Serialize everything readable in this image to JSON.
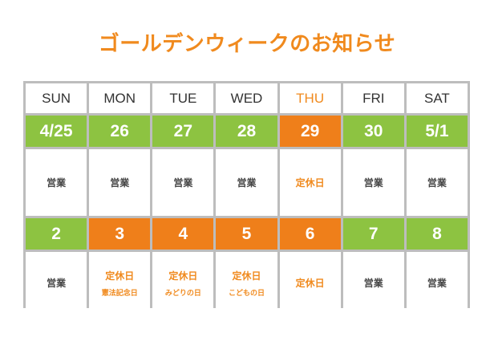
{
  "title": "ゴールデンウィークのお知らせ",
  "weekdays": [
    "SUN",
    "MON",
    "TUE",
    "WED",
    "THU",
    "FRI",
    "SAT"
  ],
  "week1": {
    "dates": [
      "4/25",
      "26",
      "27",
      "28",
      "29",
      "30",
      "5/1"
    ],
    "statuses": [
      "営業",
      "営業",
      "営業",
      "営業",
      "定休日",
      "営業",
      "営業"
    ]
  },
  "week2": {
    "dates": [
      "2",
      "3",
      "4",
      "5",
      "6",
      "7",
      "8"
    ],
    "statuses": [
      "営業",
      "定休日",
      "定休日",
      "定休日",
      "定休日",
      "営業",
      "営業"
    ],
    "holidays": [
      "",
      "憲法記念日",
      "みどりの日",
      "こどもの日",
      "",
      "",
      ""
    ]
  },
  "colors": {
    "open": "#8dc341",
    "closed": "#ef7f1a",
    "accent": "#f08a1e"
  }
}
